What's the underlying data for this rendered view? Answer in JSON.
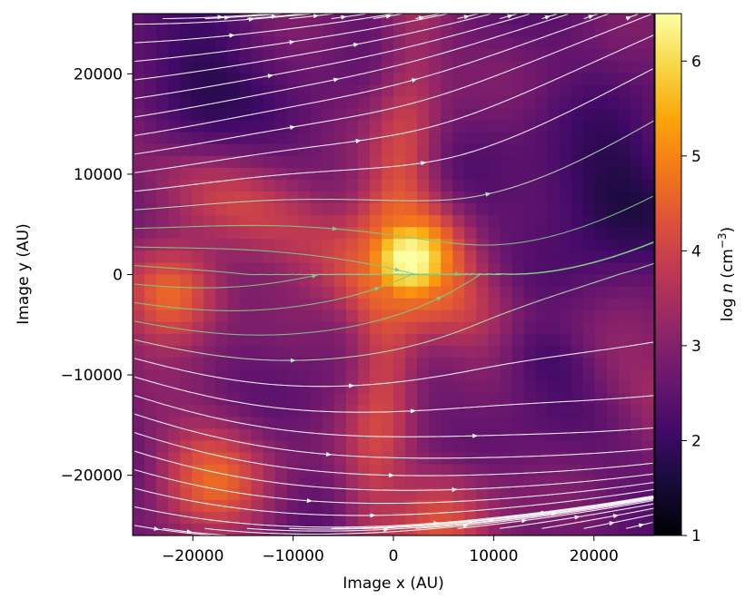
{
  "chart_data": {
    "type": "heatmap",
    "title": "",
    "xlabel": "Image x (AU)",
    "ylabel": "Image y (AU)",
    "xlim": [
      -26000,
      26000
    ],
    "ylim": [
      -26000,
      26000
    ],
    "x_ticks": [
      -20000,
      -10000,
      0,
      10000,
      20000
    ],
    "x_tick_labels": [
      "−20000",
      "−10000",
      "0",
      "10000",
      "20000"
    ],
    "y_ticks": [
      -20000,
      -10000,
      0,
      10000,
      20000
    ],
    "y_tick_labels": [
      "−20000",
      "−10000",
      "0",
      "10000",
      "20000"
    ],
    "colorbar": {
      "label_prefix": "log ",
      "label_var": "n",
      "label_unit": " (cm",
      "label_exp": "−3",
      "label_close": ")",
      "colormap": "inferno",
      "range": [
        1,
        6.5
      ],
      "ticks": [
        1,
        2,
        3,
        4,
        5,
        6
      ],
      "tick_labels": [
        "1",
        "2",
        "3",
        "4",
        "5",
        "6"
      ]
    },
    "density_features": [
      {
        "kind": "background",
        "log_n": 2.6
      },
      {
        "kind": "core",
        "x": 1500,
        "y": 1500,
        "log_n": 6.4,
        "sigma": 5000
      },
      {
        "kind": "filament",
        "angle_deg": -25,
        "log_n": 4.6,
        "width": 4500
      },
      {
        "kind": "filament",
        "angle_deg": 85,
        "log_n": 4.7,
        "width": 3500
      },
      {
        "kind": "blob",
        "x": -22000,
        "y": -2000,
        "log_n": 4.9,
        "sigma": 5000
      },
      {
        "kind": "blob",
        "x": -18000,
        "y": -20000,
        "log_n": 4.4,
        "sigma": 6000
      },
      {
        "kind": "blob",
        "x": 5000,
        "y": -24000,
        "log_n": 4.2,
        "sigma": 5500
      },
      {
        "kind": "blob",
        "x": -20000,
        "y": 19000,
        "log_n": 1.7,
        "sigma": 6000
      },
      {
        "kind": "blob",
        "x": 21000,
        "y": 8000,
        "log_n": 1.6,
        "sigma": 7000
      },
      {
        "kind": "blob",
        "x": 15000,
        "y": -9000,
        "log_n": 2.1,
        "sigma": 6000
      }
    ],
    "streamlines": {
      "description_colors": [
        "#ffffff",
        "#b7e3b0",
        "#7fc98a"
      ],
      "field_model": "B = (1, 0.15) + 1.4*exp(-(x^2+y^2)/14000^2)*(0.3, 0.95) with shear"
    }
  }
}
